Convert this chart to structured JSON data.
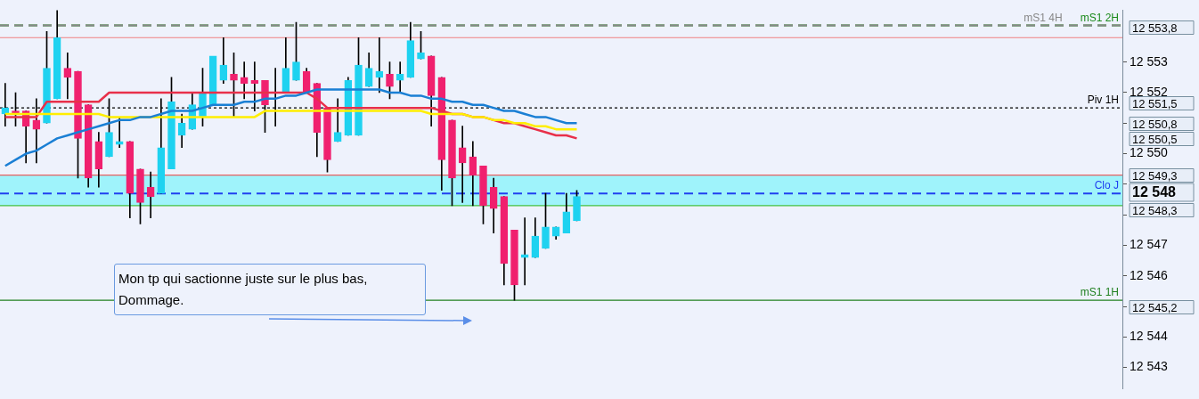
{
  "chart_data": {
    "type": "candlestick",
    "categories": [
      null,
      null,
      null,
      null,
      null,
      null,
      null,
      null,
      null,
      null,
      null,
      null,
      null,
      null,
      null,
      null,
      null,
      null,
      null,
      null,
      null,
      null,
      null,
      null,
      null,
      null,
      null,
      null,
      null,
      null,
      null,
      null,
      null,
      null,
      null,
      null,
      null,
      null,
      null,
      null,
      null,
      null,
      null,
      null,
      null,
      null,
      null,
      null,
      null,
      null,
      null,
      null,
      null,
      null,
      null,
      null,
      null,
      null,
      null,
      null,
      null,
      null,
      null,
      null,
      null,
      null,
      null,
      null,
      null,
      null,
      null,
      null,
      null,
      null,
      null,
      null,
      null,
      null,
      null,
      null,
      null,
      null,
      null,
      null,
      null,
      null,
      null,
      null,
      null,
      null,
      null,
      null,
      null,
      null,
      null,
      null,
      null,
      null,
      null,
      null,
      null,
      null,
      null,
      null,
      null,
      null,
      null,
      null
    ],
    "ohlc": [
      [
        12551.3,
        12552.3,
        12550.9,
        12551.5
      ],
      [
        12551.4,
        12552.0,
        12550.9,
        12551.3
      ],
      [
        12551.4,
        12551.4,
        12549.7,
        12550.9
      ],
      [
        12551.1,
        12551.8,
        12549.7,
        12550.8
      ],
      [
        12551.0,
        12554.0,
        12551.0,
        12552.8
      ],
      [
        12551.8,
        12554.7,
        12551.8,
        12553.8
      ],
      [
        12552.8,
        12553.3,
        12551.8,
        12552.5
      ],
      [
        12552.7,
        12552.7,
        12549.2,
        12550.5
      ],
      [
        12551.6,
        12551.6,
        12548.9,
        12549.2
      ],
      [
        12550.4,
        12550.7,
        12548.9,
        12549.5
      ],
      [
        12549.9,
        12551.8,
        12549.9,
        12550.7
      ],
      [
        12550.3,
        12551.2,
        12550.2,
        12550.4
      ],
      [
        12550.4,
        12550.4,
        12547.9,
        12548.7
      ],
      [
        12549.5,
        12549.5,
        12547.7,
        12548.4
      ],
      [
        12548.9,
        12549.4,
        12547.9,
        12548.6
      ],
      [
        12548.7,
        12551.8,
        12548.7,
        12550.2
      ],
      [
        12549.5,
        12552.5,
        12549.5,
        12551.7
      ],
      [
        12550.6,
        12551.3,
        12550.2,
        12551.0
      ],
      [
        12550.8,
        12552.0,
        12550.8,
        12551.6
      ],
      [
        12551.2,
        12552.8,
        12550.9,
        12552.0
      ],
      [
        12551.6,
        12553.2,
        12551.6,
        12553.2
      ],
      [
        12552.4,
        12553.8,
        12552.3,
        12552.9
      ],
      [
        12552.6,
        12553.3,
        12551.2,
        12552.4
      ],
      [
        12552.5,
        12553.0,
        12551.8,
        12552.3
      ],
      [
        12552.4,
        12553.0,
        12551.4,
        12552.3
      ],
      [
        12552.4,
        12552.4,
        12550.7,
        12551.6
      ],
      [
        12552.0,
        12552.8,
        12550.9,
        12552.0
      ],
      [
        12552.0,
        12553.8,
        12552.0,
        12552.8
      ],
      [
        12552.4,
        12554.3,
        12552.4,
        12553.0
      ],
      [
        12552.7,
        12552.8,
        12552.0,
        12552.0
      ],
      [
        12552.3,
        12552.3,
        12549.9,
        12550.7
      ],
      [
        12551.5,
        12551.5,
        12549.4,
        12549.8
      ],
      [
        12550.4,
        12551.8,
        12550.4,
        12550.7
      ],
      [
        12550.6,
        12552.5,
        12550.6,
        12552.4
      ],
      [
        12550.6,
        12553.8,
        12550.6,
        12552.9
      ],
      [
        12552.2,
        12553.3,
        12552.2,
        12552.8
      ],
      [
        12552.5,
        12553.8,
        12552.0,
        12552.7
      ],
      [
        12552.6,
        12553.0,
        12551.8,
        12552.2
      ],
      [
        12552.4,
        12553.0,
        12552.0,
        12552.6
      ],
      [
        12552.5,
        12554.3,
        12552.5,
        12553.7
      ],
      [
        12553.1,
        12554.0,
        12553.1,
        12553.3
      ],
      [
        12553.2,
        12553.2,
        12550.9,
        12551.9
      ],
      [
        12552.5,
        12552.5,
        12548.8,
        12549.8
      ],
      [
        12551.1,
        12551.1,
        12548.3,
        12549.2
      ],
      [
        12550.2,
        12550.9,
        12548.4,
        12549.7
      ],
      [
        12549.9,
        12550.4,
        12548.3,
        12549.3
      ],
      [
        12549.6,
        12549.6,
        12547.7,
        12548.3
      ],
      [
        12548.9,
        12549.2,
        12547.4,
        12548.2
      ],
      [
        12548.6,
        12548.6,
        12545.7,
        12546.4
      ],
      [
        12547.5,
        12547.5,
        12545.2,
        12545.7
      ],
      [
        12546.6,
        12547.9,
        12545.7,
        12546.7
      ],
      [
        12546.6,
        12547.9,
        12546.6,
        12547.3
      ],
      [
        12546.9,
        12548.7,
        12546.9,
        12547.6
      ],
      [
        12547.3,
        12547.6,
        12547.2,
        12547.6
      ],
      [
        12547.4,
        12548.7,
        12547.4,
        12548.1
      ],
      [
        12547.8,
        12548.8,
        12547.8,
        12548.6
      ],
      null,
      null,
      null,
      null,
      null,
      null,
      null,
      null,
      null,
      null,
      null,
      null,
      null,
      null,
      null,
      null,
      null,
      null,
      null,
      null,
      null,
      null,
      null,
      null,
      null,
      null,
      null,
      null,
      null,
      null,
      null,
      null,
      null,
      null,
      null,
      null,
      null,
      null,
      null,
      null,
      null,
      null,
      null,
      null,
      null,
      null,
      null,
      null,
      null,
      null,
      null,
      null
    ],
    "colors": [
      "#1ed2f0",
      "#f0206e",
      "#f0206e",
      "#f0206e",
      "#1ed2f0",
      "#1ed2f0",
      "#f0206e",
      "#f0206e",
      "#f0206e",
      "#f0206e",
      "#1ed2f0",
      "#1ed2f0",
      "#f0206e",
      "#f0206e",
      "#f0206e",
      "#1ed2f0",
      "#1ed2f0",
      "#1ed2f0",
      "#1ed2f0",
      "#1ed2f0",
      "#1ed2f0",
      "#1ed2f0",
      "#f0206e",
      "#f0206e",
      "#f0206e",
      "#f0206e",
      "#1ed2f0",
      "#1ed2f0",
      "#1ed2f0",
      "#f0206e",
      "#f0206e",
      "#f0206e",
      "#1ed2f0",
      "#1ed2f0",
      "#1ed2f0",
      "#1ed2f0",
      "#1ed2f0",
      "#f0206e",
      "#1ed2f0",
      "#1ed2f0",
      "#1ed2f0",
      "#f0206e",
      "#f0206e",
      "#f0206e",
      "#f0206e",
      "#f0206e",
      "#f0206e",
      "#f0206e",
      "#f0206e",
      "#f0206e",
      "#1ed2f0",
      "#1ed2f0",
      "#1ed2f0",
      "#1ed2f0",
      "#1ed2f0",
      "#1ed2f0",
      null,
      null,
      null,
      null,
      null,
      null,
      null,
      null,
      null,
      null,
      null,
      null,
      null,
      null,
      null,
      null,
      null,
      null,
      null,
      null,
      null,
      null,
      null,
      null,
      null,
      null,
      null,
      null,
      null,
      null,
      null,
      null,
      null,
      null,
      null,
      null,
      null,
      null,
      null,
      null,
      null,
      null,
      null,
      null,
      null,
      null,
      null,
      null,
      null,
      null,
      null,
      null
    ],
    "series": [
      {
        "type": "line",
        "color": "#1a7fd4",
        "values": [
          12549.6,
          12549.8,
          12550.0,
          12550.1,
          12550.3,
          12550.5,
          12550.6,
          12550.7,
          12550.8,
          12550.9,
          12551.0,
          12551.1,
          12551.1,
          12551.2,
          12551.2,
          12551.3,
          12551.4,
          12551.4,
          12551.4,
          12551.5,
          12551.6,
          12551.6,
          12551.6,
          12551.7,
          12551.7,
          12551.8,
          12551.8,
          12551.9,
          12551.9,
          12552.0,
          12552.1,
          12552.1,
          12552.1,
          12552.1,
          12552.1,
          12552.1,
          12552.1,
          12552.0,
          12552.0,
          12551.9,
          12551.9,
          12551.8,
          12551.8,
          12551.7,
          12551.7,
          12551.6,
          12551.6,
          12551.5,
          12551.4,
          12551.4,
          12551.3,
          12551.2,
          12551.2,
          12551.1,
          12551.0,
          12551.0,
          null,
          null,
          null,
          null,
          null,
          null,
          null,
          null,
          null,
          null,
          null,
          null,
          null,
          null,
          null,
          null,
          null,
          null,
          null,
          null,
          null,
          null,
          null,
          null,
          null,
          null,
          null,
          null,
          null,
          null,
          null,
          null,
          null,
          null,
          null,
          null,
          null,
          null,
          null,
          null,
          null,
          null,
          null,
          null,
          null,
          null,
          null,
          null,
          null,
          null,
          null,
          null
        ]
      },
      {
        "type": "line",
        "color": "#ffee00",
        "values": [
          12551.3,
          12551.3,
          12551.3,
          12551.3,
          12551.3,
          12551.3,
          12551.3,
          12551.3,
          12551.3,
          12551.3,
          12551.2,
          12551.2,
          12551.2,
          12551.2,
          12551.2,
          12551.2,
          12551.2,
          12551.2,
          12551.2,
          12551.2,
          12551.2,
          12551.2,
          12551.2,
          12551.2,
          12551.2,
          12551.4,
          12551.4,
          12551.4,
          12551.4,
          12551.4,
          12551.4,
          12551.4,
          12551.4,
          12551.4,
          12551.4,
          12551.4,
          12551.4,
          12551.4,
          12551.4,
          12551.4,
          12551.4,
          12551.3,
          12551.3,
          12551.3,
          12551.3,
          12551.2,
          12551.2,
          12551.1,
          12551.1,
          12551.0,
          12551.0,
          12550.9,
          12550.9,
          12550.8,
          12550.8,
          12550.8,
          null,
          null,
          null,
          null,
          null,
          null,
          null,
          null,
          null,
          null,
          null,
          null,
          null,
          null,
          null,
          null,
          null,
          null,
          null,
          null,
          null,
          null,
          null,
          null,
          null,
          null,
          null,
          null,
          null,
          null,
          null,
          null,
          null,
          null,
          null,
          null,
          null,
          null,
          null,
          null,
          null,
          null,
          null,
          null,
          null,
          null,
          null,
          null,
          null,
          null,
          null,
          null
        ]
      },
      {
        "type": "line",
        "color": "#e8304a",
        "values": [
          12551.2,
          12551.2,
          12551.2,
          12551.2,
          12551.7,
          12551.7,
          12551.7,
          12551.7,
          12551.7,
          12551.7,
          12552.0,
          12552.0,
          12552.0,
          12552.0,
          12552.0,
          12552.0,
          12552.0,
          12552.0,
          12552.0,
          12552.0,
          12552.0,
          12552.0,
          12552.0,
          12552.0,
          12552.0,
          12552.0,
          12552.0,
          12552.0,
          12552.0,
          12552.0,
          12551.8,
          12551.5,
          12551.5,
          12551.5,
          12551.5,
          12551.5,
          12551.5,
          12551.5,
          12551.5,
          12551.5,
          12551.5,
          12551.5,
          12551.4,
          12551.3,
          12551.3,
          12551.2,
          12551.2,
          12551.1,
          12551.0,
          12551.0,
          12550.9,
          12550.8,
          12550.7,
          12550.6,
          12550.6,
          12550.5,
          null,
          null,
          null,
          null,
          null,
          null,
          null,
          null,
          null,
          null,
          null,
          null,
          null,
          null,
          null,
          null,
          null,
          null,
          null,
          null,
          null,
          null,
          null,
          null,
          null,
          null,
          null,
          null,
          null,
          null,
          null,
          null,
          null,
          null,
          null,
          null,
          null,
          null,
          null,
          null,
          null,
          null,
          null,
          null,
          null,
          null,
          null,
          null,
          null,
          null,
          null,
          null
        ]
      }
    ],
    "ylim": [
      12542.3,
      12554.7
    ],
    "yticks": [
      {
        "value": 12543,
        "label": "12 543"
      },
      {
        "value": 12544,
        "label": "12 544"
      },
      {
        "value": 12545,
        "label": null
      },
      {
        "value": 12546,
        "label": "12 546"
      },
      {
        "value": 12547,
        "label": "12 547"
      },
      {
        "value": 12548,
        "label": null
      },
      {
        "value": 12549,
        "label": null
      },
      {
        "value": 12550,
        "label": "12 550"
      },
      {
        "value": 12551,
        "label": null
      },
      {
        "value": 12552,
        "label": "12 552"
      },
      {
        "value": 12553,
        "label": "12 553"
      }
    ],
    "tick_labels": "y",
    "bands": [
      {
        "axis": "y",
        "from": 12548.3,
        "to": 12549.3,
        "color": "#9ff3fb"
      }
    ],
    "ref_lines": [
      {
        "axis": "y",
        "value": 12554.2,
        "label": "mS1 2H",
        "color": "#1a8a1a",
        "line_style": "dashed"
      },
      {
        "axis": "y",
        "value": 12554.2,
        "label": "mS1 4H",
        "color": "#888888",
        "line_style": "dashed"
      },
      {
        "axis": "y",
        "value": 12553.8,
        "color": "#f08080",
        "line_style": "solid"
      },
      {
        "axis": "y",
        "value": 12551.5,
        "label": "Piv 1H",
        "color": "#000000",
        "line_style": "dotted"
      },
      {
        "axis": "y",
        "value": 12549.3,
        "color": "#e86060",
        "line_style": "solid"
      },
      {
        "axis": "y",
        "value": 12548.7,
        "label": "Clo J",
        "color": "#2040f0",
        "line_style": "dashed"
      },
      {
        "axis": "y",
        "value": 12548.3,
        "color": "#40c040",
        "line_style": "solid"
      },
      {
        "axis": "y",
        "value": 12545.2,
        "label": "mS1 1H",
        "color": "#208020",
        "line_style": "solid"
      }
    ],
    "annotations": [
      "Mon tp qui sactionne juste sur le plus bas,\nDommage.",
      "12 553,8",
      "12 551,5",
      "12 550,8",
      "12 550,5",
      "12 549,3",
      "12 548",
      "12 548,3",
      "12 545,2"
    ]
  }
}
